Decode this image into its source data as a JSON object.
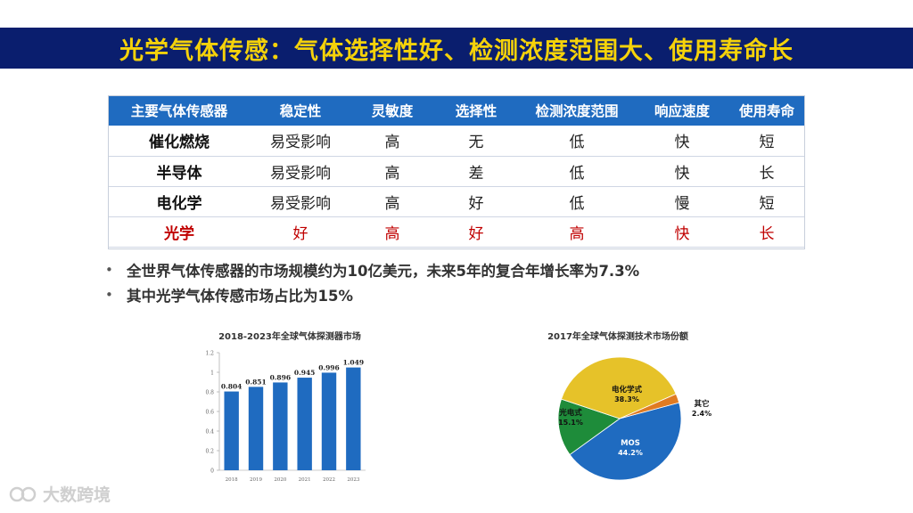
{
  "slide": {
    "title": "光学气体传感：气体选择性好、检测浓度范围大、使用寿命长"
  },
  "table": {
    "headers": [
      "主要气体传感器",
      "稳定性",
      "灵敏度",
      "选择性",
      "检测浓度范围",
      "响应速度",
      "使用寿命"
    ],
    "rows": [
      [
        "催化燃烧",
        "易受影响",
        "高",
        "无",
        "低",
        "快",
        "短"
      ],
      [
        "半导体",
        "易受影响",
        "高",
        "差",
        "低",
        "快",
        "长"
      ],
      [
        "电化学",
        "易受影响",
        "高",
        "好",
        "低",
        "慢",
        "短"
      ],
      [
        "光学",
        "好",
        "高",
        "好",
        "高",
        "快",
        "长"
      ]
    ],
    "highlight_color": "#c00000",
    "header_color": "#1f6bc0"
  },
  "bullets": [
    "全世界气体传感器的市场规模约为10亿美元，未来5年的复合年增长率为7.3%",
    "其中光学气体传感市场占比为15%"
  ],
  "watermark": "大数跨境",
  "chart_data": [
    {
      "type": "bar",
      "title": "2018-2023年全球气体探测器市场",
      "categories": [
        "2018",
        "2019",
        "2020",
        "2021",
        "2022",
        "2023"
      ],
      "values": [
        0.804,
        0.851,
        0.896,
        0.945,
        0.996,
        1.049
      ],
      "value_labels": [
        "0.804",
        "0.851",
        "0.896",
        "0.945",
        "0.996",
        "1.049"
      ],
      "ylim": [
        0,
        1.2
      ],
      "yticks": [
        "0",
        "0.2",
        "0.4",
        "0.6",
        "0.8",
        "1",
        "1.2"
      ],
      "color": "#1f6bc0",
      "grid": false
    },
    {
      "type": "pie",
      "title": "2017年全球气体探测技术市场份额",
      "slices": [
        {
          "label": "MOS",
          "value": 44.2,
          "value_label": "44.2%",
          "color": "#1f6bc0"
        },
        {
          "label": "光电式",
          "value": 15.1,
          "value_label": "15.1%",
          "color": "#1e8c3a"
        },
        {
          "label": "电化学式",
          "value": 38.3,
          "value_label": "38.3%",
          "color": "#e6c229"
        },
        {
          "label": "其它",
          "value": 2.4,
          "value_label": "2.4%",
          "color": "#e07b22"
        }
      ]
    }
  ]
}
